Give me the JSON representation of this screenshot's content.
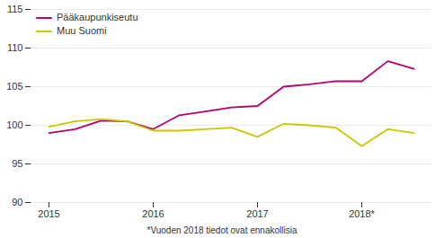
{
  "chart_data": {
    "type": "line",
    "categories": [
      "2015",
      null,
      null,
      null,
      "2016",
      null,
      null,
      null,
      "2017",
      null,
      null,
      null,
      "2018*",
      null,
      null
    ],
    "series": [
      {
        "name": "Pääkaupunkiseutu",
        "color": "#b5006e",
        "values": [
          99.0,
          99.5,
          100.6,
          100.5,
          99.5,
          101.3,
          101.8,
          102.3,
          102.5,
          105.0,
          105.3,
          105.7,
          105.7,
          108.3,
          107.3
        ]
      },
      {
        "name": "Muu Suomi",
        "color": "#c8c800",
        "values": [
          99.8,
          100.5,
          100.8,
          100.5,
          99.3,
          99.3,
          99.5,
          99.7,
          98.5,
          100.2,
          100.0,
          99.7,
          97.3,
          99.5,
          99.0
        ]
      }
    ],
    "ylim": [
      90,
      115
    ],
    "yticks": [
      90,
      95,
      100,
      105,
      110,
      115
    ],
    "grid": true,
    "legend": "upper left",
    "annotations": [
      "*Vuoden 2018 tiedot ovat ennakollisia"
    ]
  }
}
